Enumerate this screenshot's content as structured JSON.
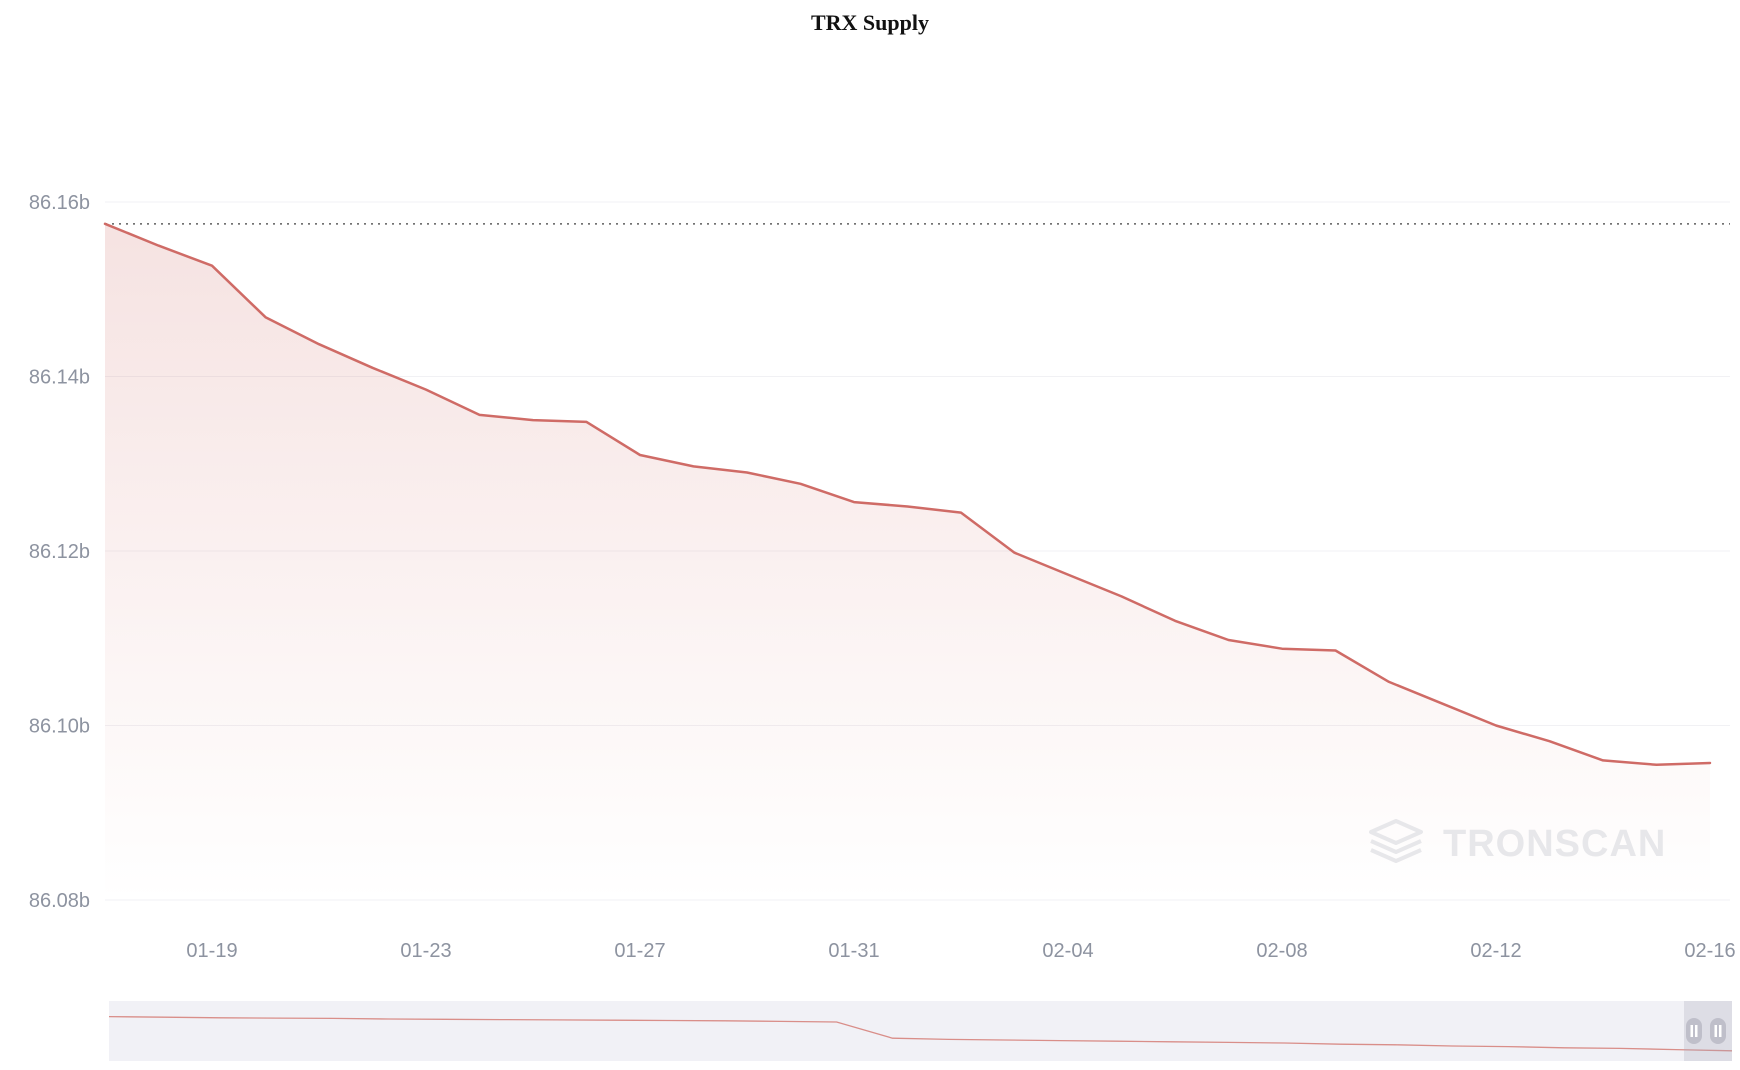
{
  "title": "TRX Supply",
  "watermark": {
    "text": "TRONSCAN"
  },
  "colors": {
    "title": "#111111",
    "line": "#cf6b66",
    "area_top": "rgba(207,107,102,0.20)",
    "area_bottom": "rgba(207,107,102,0)",
    "grid": "#f1f1f4",
    "axis_label": "#8d93a0",
    "dotted": "#5f5f5f",
    "nav_bg": "#f1f1f6",
    "nav_line": "#d98e89",
    "nav_shade": "rgba(170,170,188,0.28)",
    "handle": "#bfbfca",
    "watermark": "#e7e7ea"
  },
  "chart_data": {
    "type": "area",
    "title": "TRX Supply",
    "x": [
      "01-17",
      "01-18",
      "01-19",
      "01-20",
      "01-21",
      "01-22",
      "01-23",
      "01-24",
      "01-25",
      "01-26",
      "01-27",
      "01-28",
      "01-29",
      "01-30",
      "01-31",
      "02-01",
      "02-02",
      "02-03",
      "02-04",
      "02-05",
      "02-06",
      "02-07",
      "02-08",
      "02-09",
      "02-10",
      "02-11",
      "02-12",
      "02-13",
      "02-14",
      "02-15",
      "02-16"
    ],
    "values": [
      86.1575,
      86.155,
      86.1527,
      86.1468,
      86.1437,
      86.141,
      86.1385,
      86.1356,
      86.135,
      86.1348,
      86.131,
      86.1297,
      86.129,
      86.1277,
      86.1256,
      86.1251,
      86.1244,
      86.1198,
      86.1173,
      86.1148,
      86.112,
      86.1098,
      86.1088,
      86.1086,
      86.105,
      86.1025,
      86.1,
      86.0982,
      86.096,
      86.0955,
      86.0957
    ],
    "ylabel": "",
    "xlabel": "",
    "ylim": [
      86.07,
      86.17
    ],
    "yticks": [
      86.16,
      86.14,
      86.12,
      86.1,
      86.08
    ],
    "ytick_labels": [
      "86.16b",
      "86.14b",
      "86.12b",
      "86.10b",
      "86.08b"
    ],
    "xtick_labels": [
      "01-19",
      "01-23",
      "01-27",
      "01-31",
      "02-04",
      "02-08",
      "02-12",
      "02-16"
    ],
    "max_line": 86.1575,
    "grid": true,
    "legend_position": "none",
    "unit": "billions of TRX"
  },
  "navigator": {
    "values": [
      0.26,
      0.27,
      0.28,
      0.285,
      0.29,
      0.3,
      0.305,
      0.31,
      0.315,
      0.32,
      0.325,
      0.33,
      0.34,
      0.35,
      0.62,
      0.64,
      0.65,
      0.66,
      0.67,
      0.68,
      0.69,
      0.7,
      0.72,
      0.73,
      0.75,
      0.76,
      0.78,
      0.79,
      0.81,
      0.83
    ]
  }
}
